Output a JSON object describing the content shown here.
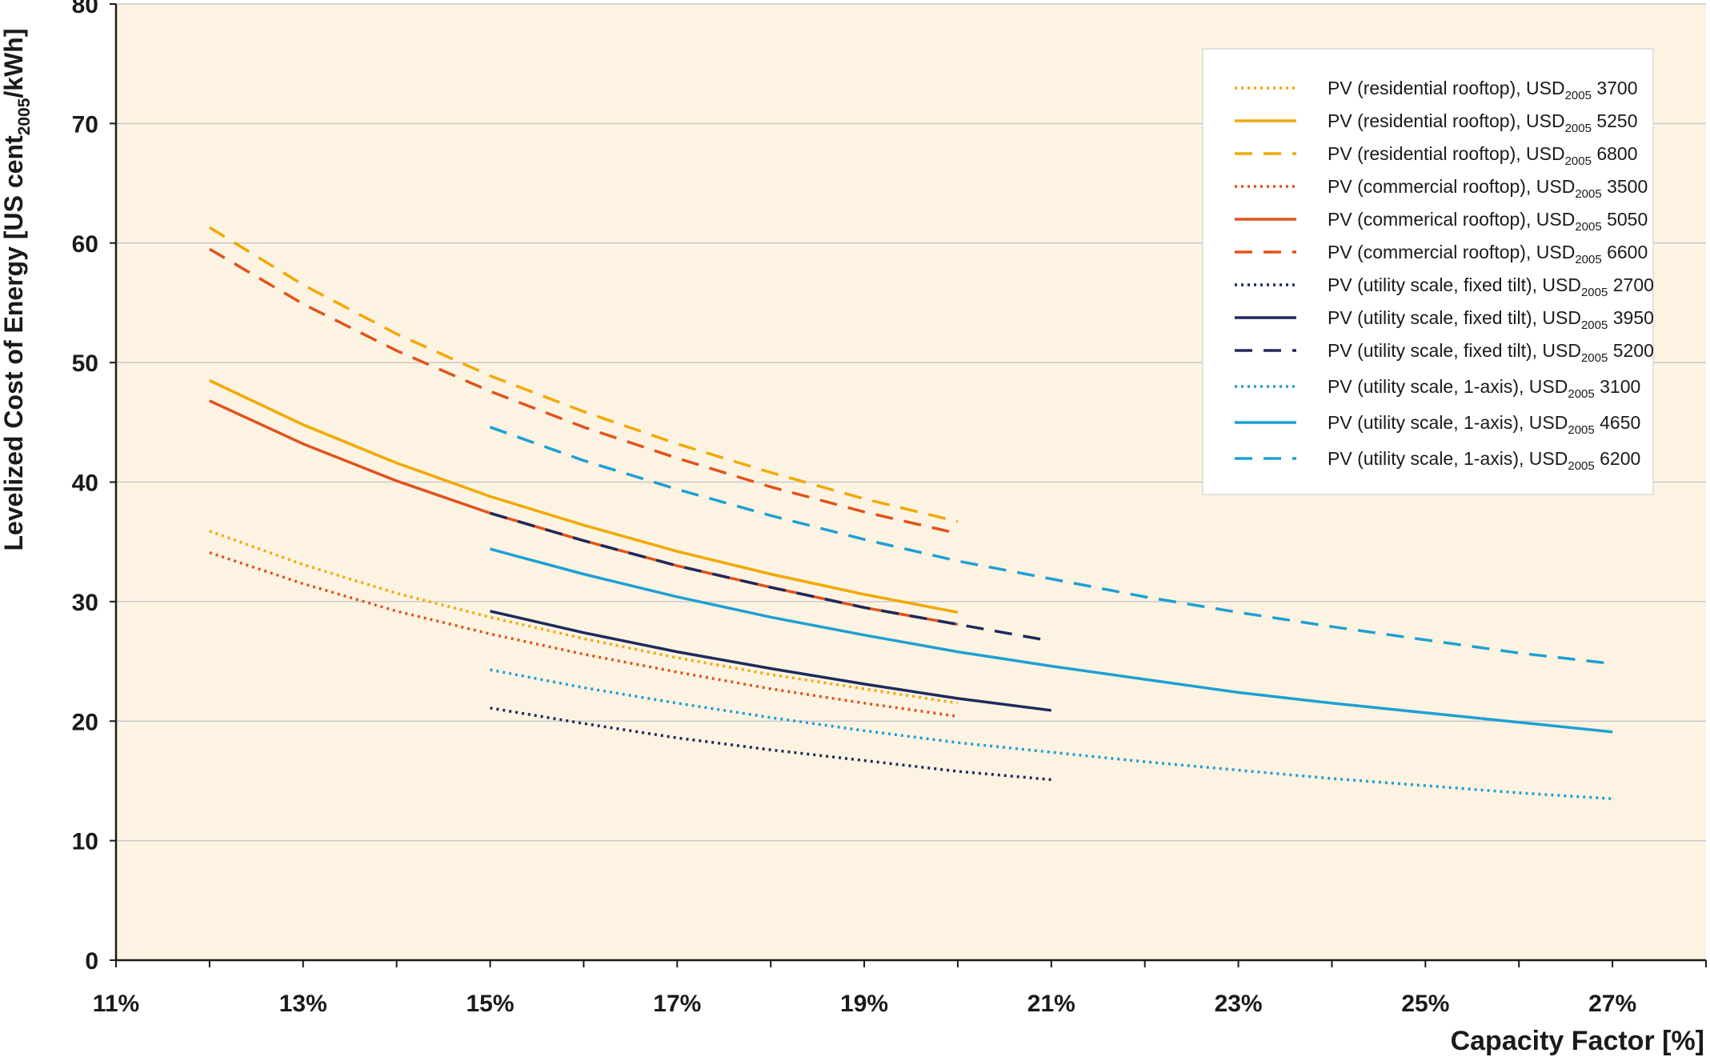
{
  "chart_data": {
    "type": "line",
    "title": "",
    "xlabel": "Capacity Factor [%]",
    "ylabel": "Levelized Cost of Energy [US cent2005/kWh]",
    "ylabel_parts": [
      "Levelized Cost of Energy [US cent",
      "2005",
      "/kWh]"
    ],
    "xlim": [
      11,
      28
    ],
    "ylim": [
      0,
      80
    ],
    "x_ticks": [
      11,
      13,
      15,
      17,
      19,
      21,
      23,
      25,
      27
    ],
    "x_tick_labels": [
      "11%",
      "13%",
      "15%",
      "17%",
      "19%",
      "21%",
      "23%",
      "25%",
      "27%"
    ],
    "y_ticks": [
      0,
      10,
      20,
      30,
      40,
      50,
      60,
      70,
      80
    ],
    "y_tick_labels": [
      "0",
      "10",
      "20",
      "30",
      "40",
      "50",
      "60",
      "70",
      "80"
    ],
    "grid": "horizontal",
    "plot_background": "#fdf3e3",
    "legend_position": "top-right",
    "series": [
      {
        "name": "PV (residential rooftop), USD2005 3700",
        "label_prefix": "PV (residential rooftop), USD",
        "label_sub": "2005",
        "label_suffix": " 3700",
        "color": "#f2a900",
        "dash": "dotted",
        "x": [
          12,
          13,
          14,
          15,
          16,
          17,
          18,
          19,
          20
        ],
        "y": [
          35.9,
          33.1,
          30.7,
          28.7,
          26.9,
          25.3,
          23.9,
          22.7,
          21.5
        ]
      },
      {
        "name": "PV (residential rooftop), USD2005 5250",
        "label_prefix": "PV (residential rooftop), USD",
        "label_sub": "2005",
        "label_suffix": " 5250",
        "color": "#f2a900",
        "dash": "solid",
        "x": [
          12,
          13,
          14,
          15,
          16,
          17,
          18,
          19,
          20
        ],
        "y": [
          48.5,
          44.8,
          41.6,
          38.8,
          36.4,
          34.2,
          32.3,
          30.6,
          29.1
        ]
      },
      {
        "name": "PV (residential rooftop), USD2005 6800",
        "label_prefix": "PV (residential rooftop), USD",
        "label_sub": "2005",
        "label_suffix": " 6800",
        "color": "#f2a900",
        "dash": "dashed",
        "x": [
          12,
          13,
          14,
          15,
          16,
          17,
          18,
          19,
          20
        ],
        "y": [
          61.3,
          56.5,
          52.4,
          48.9,
          45.9,
          43.2,
          40.8,
          38.6,
          36.7
        ]
      },
      {
        "name": "PV (commercial rooftop), USD2005 3500",
        "label_prefix": "PV (commercial rooftop), USD",
        "label_sub": "2005",
        "label_suffix": " 3500",
        "color": "#e0531b",
        "dash": "dotted",
        "x": [
          12,
          13,
          14,
          15,
          16,
          17,
          18,
          19,
          20
        ],
        "y": [
          34.1,
          31.5,
          29.2,
          27.3,
          25.6,
          24.1,
          22.7,
          21.5,
          20.4
        ]
      },
      {
        "name": "PV (commerical rooftop), USD2005 5050",
        "label_prefix": "PV (commerical rooftop), USD",
        "label_sub": "2005",
        "label_suffix": " 5050",
        "color": "#e0531b",
        "dash": "solid",
        "x": [
          12,
          13,
          14,
          15,
          16,
          17,
          18,
          19,
          20
        ],
        "y": [
          46.8,
          43.2,
          40.1,
          37.4,
          35.1,
          33.0,
          31.2,
          29.5,
          28.1
        ]
      },
      {
        "name": "PV (commercial rooftop), USD2005 6600",
        "label_prefix": "PV (commercial rooftop), USD",
        "label_sub": "2005",
        "label_suffix": " 6600",
        "color": "#e0531b",
        "dash": "dashed",
        "x": [
          12,
          13,
          14,
          15,
          16,
          17,
          18,
          19,
          20
        ],
        "y": [
          59.5,
          54.9,
          51.0,
          47.6,
          44.6,
          42.0,
          39.6,
          37.5,
          35.7
        ]
      },
      {
        "name": "PV (utility scale, fixed tilt), USD2005 2700",
        "label_prefix": "PV (utility scale, fixed tilt), USD",
        "label_sub": "2005",
        "label_suffix": " 2700",
        "color": "#1f2a5c",
        "dash": "dotted",
        "x": [
          15,
          16,
          17,
          18,
          19,
          20,
          21
        ],
        "y": [
          21.1,
          19.8,
          18.6,
          17.6,
          16.7,
          15.8,
          15.1
        ]
      },
      {
        "name": "PV (utility scale, fixed tilt), USD2005 3950",
        "label_prefix": "PV (utility scale, fixed tilt), USD",
        "label_sub": "2005",
        "label_suffix": " 3950",
        "color": "#1f2a5c",
        "dash": "solid",
        "x": [
          15,
          16,
          17,
          18,
          19,
          20,
          21
        ],
        "y": [
          29.2,
          27.4,
          25.8,
          24.4,
          23.1,
          21.9,
          20.9
        ]
      },
      {
        "name": "PV (utility scale, fixed tilt), USD2005 5200",
        "label_prefix": "PV (utility scale, fixed tilt), USD",
        "label_sub": "2005",
        "label_suffix": " 5200",
        "color": "#1f2a5c",
        "dash": "dashed",
        "x": [
          15,
          16,
          17,
          18,
          19,
          20,
          21
        ],
        "y": [
          37.4,
          35.1,
          33.0,
          31.2,
          29.5,
          28.1,
          26.7
        ]
      },
      {
        "name": "PV (utility scale, 1-axis), USD2005 3100",
        "label_prefix": "PV (utility scale, 1-axis), USD",
        "label_sub": "2005",
        "label_suffix": " 3100",
        "color": "#1fa0d2",
        "dash": "dotted",
        "x": [
          15,
          16,
          17,
          18,
          19,
          20,
          21,
          22,
          23,
          24,
          25,
          26,
          27
        ],
        "y": [
          24.3,
          22.8,
          21.5,
          20.3,
          19.2,
          18.2,
          17.4,
          16.6,
          15.9,
          15.2,
          14.6,
          14.0,
          13.5
        ]
      },
      {
        "name": "PV (utility scale, 1-axis), USD2005 4650",
        "label_prefix": "PV (utility scale, 1-axis), USD",
        "label_sub": "2005",
        "label_suffix": " 4650",
        "color": "#1fa0d2",
        "dash": "solid",
        "x": [
          15,
          16,
          17,
          18,
          19,
          20,
          21,
          22,
          23,
          24,
          25,
          26,
          27
        ],
        "y": [
          34.4,
          32.3,
          30.4,
          28.7,
          27.2,
          25.8,
          24.6,
          23.5,
          22.4,
          21.5,
          20.7,
          19.9,
          19.1
        ]
      },
      {
        "name": "PV (utility scale, 1-axis), USD2005 6200",
        "label_prefix": "PV (utility scale, 1-axis), USD",
        "label_sub": "2005",
        "label_suffix": " 6200",
        "color": "#1fa0d2",
        "dash": "dashed",
        "x": [
          15,
          16,
          17,
          18,
          19,
          20,
          21,
          22,
          23,
          24,
          25,
          26,
          27
        ],
        "y": [
          44.6,
          41.8,
          39.4,
          37.2,
          35.2,
          33.4,
          31.9,
          30.4,
          29.1,
          27.9,
          26.8,
          25.7,
          24.8
        ]
      }
    ]
  }
}
